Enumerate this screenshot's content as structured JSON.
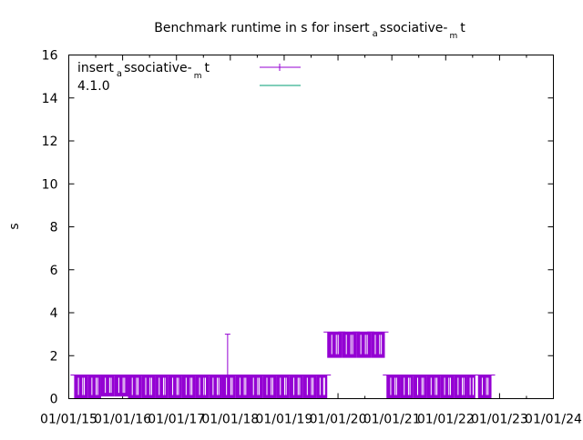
{
  "chart_data": {
    "type": "line",
    "title": "Benchmark runtime in s for insert_associative-_m t",
    "title_parts": {
      "a": "Benchmark runtime in s for insert",
      "b": "a",
      "c": "ssociative-",
      "d": "m",
      "e": "t"
    },
    "xlabel": "",
    "ylabel": "s",
    "ylim": [
      0,
      16
    ],
    "xlim": [
      2015.0,
      2024.0
    ],
    "yticks": [
      "0",
      "2",
      "4",
      "6",
      "8",
      "10",
      "12",
      "14",
      "16"
    ],
    "xticks": [
      "01/01/15",
      "01/01/16",
      "01/01/17",
      "01/01/18",
      "01/01/19",
      "01/01/20",
      "01/01/21",
      "01/01/22",
      "01/01/23",
      "01/01/24"
    ],
    "legend_position": "top-left",
    "legend": [
      {
        "parts": {
          "a": "insert",
          "b": "a",
          "c": "ssociative-",
          "d": "m",
          "e": "t"
        },
        "color": "#9400d3",
        "style": "errorbars"
      },
      {
        "label": "4.1.0",
        "color": "#009e73",
        "style": "line"
      }
    ],
    "series": [
      {
        "name": "insert_associative-_m t",
        "color": "#9400d3",
        "points": [
          {
            "x": 2015.1,
            "w": 0.25,
            "y": 0.5,
            "lo": 0.0,
            "hi": 1.1
          },
          {
            "x": 2015.35,
            "w": 0.25,
            "y": 0.5,
            "lo": 0.0,
            "hi": 1.1
          },
          {
            "x": 2015.6,
            "w": 0.25,
            "y": 0.4,
            "lo": 0.1,
            "hi": 1.1
          },
          {
            "x": 2015.85,
            "w": 0.25,
            "y": 0.4,
            "lo": 0.1,
            "hi": 1.1
          },
          {
            "x": 2016.1,
            "w": 0.25,
            "y": 0.5,
            "lo": 0.0,
            "hi": 1.1
          },
          {
            "x": 2016.35,
            "w": 0.25,
            "y": 0.5,
            "lo": 0.0,
            "hi": 1.1
          },
          {
            "x": 2016.6,
            "w": 0.25,
            "y": 0.5,
            "lo": 0.0,
            "hi": 1.1
          },
          {
            "x": 2016.85,
            "w": 0.25,
            "y": 0.5,
            "lo": 0.0,
            "hi": 1.1
          },
          {
            "x": 2017.1,
            "w": 0.25,
            "y": 0.5,
            "lo": 0.0,
            "hi": 1.1
          },
          {
            "x": 2017.35,
            "w": 0.25,
            "y": 0.5,
            "lo": 0.0,
            "hi": 1.1
          },
          {
            "x": 2017.6,
            "w": 0.25,
            "y": 0.5,
            "lo": 0.0,
            "hi": 1.1
          },
          {
            "x": 2017.85,
            "w": 0.25,
            "y": 0.5,
            "lo": 0.0,
            "hi": 1.1
          },
          {
            "x": 2018.1,
            "w": 0.25,
            "y": 0.5,
            "lo": 0.0,
            "hi": 1.1
          },
          {
            "x": 2018.35,
            "w": 0.25,
            "y": 0.5,
            "lo": 0.0,
            "hi": 1.1
          },
          {
            "x": 2018.6,
            "w": 0.25,
            "y": 0.5,
            "lo": 0.0,
            "hi": 1.1
          },
          {
            "x": 2018.85,
            "w": 0.25,
            "y": 0.5,
            "lo": 0.0,
            "hi": 1.1
          },
          {
            "x": 2019.1,
            "w": 0.25,
            "y": 0.5,
            "lo": 0.0,
            "hi": 1.1
          },
          {
            "x": 2019.35,
            "w": 0.25,
            "y": 0.5,
            "lo": 0.0,
            "hi": 1.1
          },
          {
            "x": 2019.6,
            "w": 0.2,
            "y": 0.5,
            "lo": 0.0,
            "hi": 1.1
          },
          {
            "x": 2019.8,
            "w": 0.27,
            "y": 2.5,
            "lo": 1.9,
            "hi": 3.1
          },
          {
            "x": 2020.07,
            "w": 0.27,
            "y": 2.5,
            "lo": 1.9,
            "hi": 3.1
          },
          {
            "x": 2020.34,
            "w": 0.27,
            "y": 2.5,
            "lo": 1.9,
            "hi": 3.1
          },
          {
            "x": 2020.61,
            "w": 0.26,
            "y": 2.5,
            "lo": 1.9,
            "hi": 3.1
          },
          {
            "x": 2020.9,
            "w": 0.25,
            "y": 0.5,
            "lo": 0.0,
            "hi": 1.1
          },
          {
            "x": 2021.15,
            "w": 0.25,
            "y": 0.5,
            "lo": 0.0,
            "hi": 1.1
          },
          {
            "x": 2021.4,
            "w": 0.25,
            "y": 0.5,
            "lo": 0.0,
            "hi": 1.1
          },
          {
            "x": 2021.65,
            "w": 0.25,
            "y": 0.5,
            "lo": 0.0,
            "hi": 1.1
          },
          {
            "x": 2021.9,
            "w": 0.25,
            "y": 0.5,
            "lo": 0.0,
            "hi": 1.1
          },
          {
            "x": 2022.15,
            "w": 0.25,
            "y": 0.5,
            "lo": 0.0,
            "hi": 1.1
          },
          {
            "x": 2022.4,
            "w": 0.15,
            "y": 0.5,
            "lo": 0.0,
            "hi": 1.1
          },
          {
            "x": 2022.6,
            "w": 0.25,
            "y": 0.5,
            "lo": 0.0,
            "hi": 1.1
          }
        ],
        "outliers": [
          {
            "x": 2017.95,
            "y": 3.0
          }
        ]
      },
      {
        "name": "4.1.0",
        "color": "#009e73",
        "points": []
      }
    ]
  }
}
